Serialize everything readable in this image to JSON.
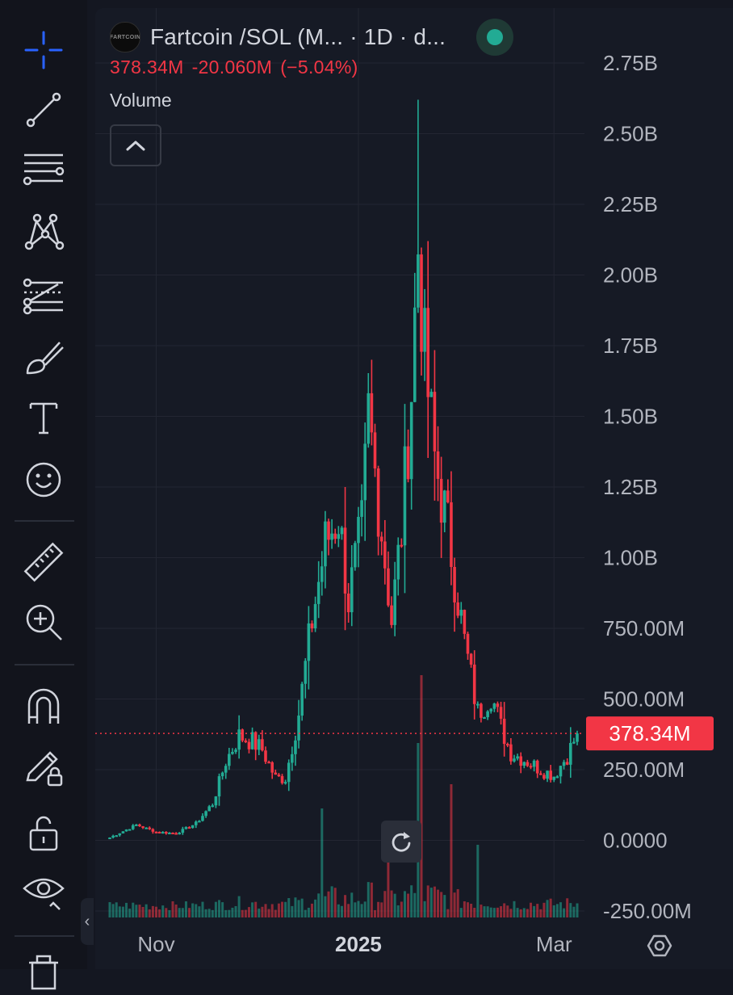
{
  "legend": {
    "logo_text": "FARTCOIN",
    "symbol": "Fartcoin /SOL (M... · 1D · d...",
    "last_value": "378.34M",
    "change_abs": "-20.060M",
    "change_pct": "(−5.04%)",
    "volume_label": "Volume"
  },
  "colors": {
    "up": "#22ab94",
    "down": "#f23645",
    "background": "#161a25",
    "grid": "#232632",
    "axis_text": "#b2b5be",
    "toolbar_icon": "#d1d4dc",
    "crosshair": "#2962ff"
  },
  "toolbar": {
    "tools": [
      "crosshair-icon",
      "trend-line-icon",
      "horizontal-lines-icon",
      "pattern-icon",
      "fib-retracement-icon",
      "brush-icon",
      "text-icon",
      "emoji-icon",
      "ruler-icon",
      "zoom-in-icon",
      "magnet-icon",
      "pencil-lock-icon",
      "unlock-icon",
      "eye-icon",
      "trash-icon"
    ]
  },
  "chart_data": {
    "type": "candlestick",
    "title": "Fartcoin /SOL (M... · 1D · d...",
    "y_axis": {
      "ticks": [
        "2.75B",
        "2.50B",
        "2.25B",
        "2.00B",
        "1.75B",
        "1.50B",
        "1.25B",
        "1.00B",
        "750.00M",
        "500.00M",
        "250.00M",
        "0.0000",
        "-250.00M"
      ],
      "tick_values": [
        2750,
        2500,
        2250,
        2000,
        1750,
        1500,
        1250,
        1000,
        750,
        500,
        250,
        0,
        -250
      ],
      "unit": "millions",
      "range": [
        -250,
        2750
      ]
    },
    "x_axis": {
      "labels": [
        "Nov",
        "2025",
        "Mar"
      ]
    },
    "last_price_label": "378.34M",
    "last_price_value": 378.34,
    "keypoints": [
      {
        "date": "2024-10-18",
        "v": 10
      },
      {
        "date": "2024-10-26",
        "v": 55
      },
      {
        "date": "2024-11-01",
        "v": 30
      },
      {
        "date": "2024-11-07",
        "v": 25
      },
      {
        "date": "2024-11-13",
        "v": 60
      },
      {
        "date": "2024-11-18",
        "v": 130
      },
      {
        "date": "2024-11-22",
        "v": 280
      },
      {
        "date": "2024-11-26",
        "v": 370
      },
      {
        "date": "2024-11-30",
        "v": 350
      },
      {
        "date": "2024-12-03",
        "v": 320
      },
      {
        "date": "2024-12-07",
        "v": 220
      },
      {
        "date": "2024-12-10",
        "v": 220
      },
      {
        "date": "2024-12-14",
        "v": 450
      },
      {
        "date": "2024-12-18",
        "v": 780
      },
      {
        "date": "2024-12-22",
        "v": 1050
      },
      {
        "date": "2024-12-26",
        "v": 1150
      },
      {
        "date": "2024-12-29",
        "v": 850
      },
      {
        "date": "2025-01-02",
        "v": 1100
      },
      {
        "date": "2025-01-04",
        "v": 1500
      },
      {
        "date": "2025-01-08",
        "v": 1100
      },
      {
        "date": "2025-01-11",
        "v": 780
      },
      {
        "date": "2025-01-14",
        "v": 1100
      },
      {
        "date": "2025-01-17",
        "v": 1600
      },
      {
        "date": "2025-01-19",
        "v": 2100
      },
      {
        "date": "2025-01-21",
        "v": 1700
      },
      {
        "date": "2025-01-24",
        "v": 1350
      },
      {
        "date": "2025-01-28",
        "v": 1100
      },
      {
        "date": "2025-02-02",
        "v": 700
      },
      {
        "date": "2025-02-06",
        "v": 450
      },
      {
        "date": "2025-02-10",
        "v": 520
      },
      {
        "date": "2025-02-13",
        "v": 400
      },
      {
        "date": "2025-02-16",
        "v": 310
      },
      {
        "date": "2025-02-21",
        "v": 280
      },
      {
        "date": "2025-02-25",
        "v": 250
      },
      {
        "date": "2025-03-01",
        "v": 230
      },
      {
        "date": "2025-03-05",
        "v": 300
      },
      {
        "date": "2025-03-08",
        "v": 378.34
      }
    ],
    "volume": {
      "peak_dates": [
        "2025-01-20",
        "2025-01-19",
        "2025-01-29",
        "2024-12-21",
        "2025-01-10",
        "2025-02-06"
      ],
      "peak_heights_fraction": [
        1.0,
        0.72,
        0.55,
        0.45,
        0.38,
        0.3
      ]
    }
  }
}
